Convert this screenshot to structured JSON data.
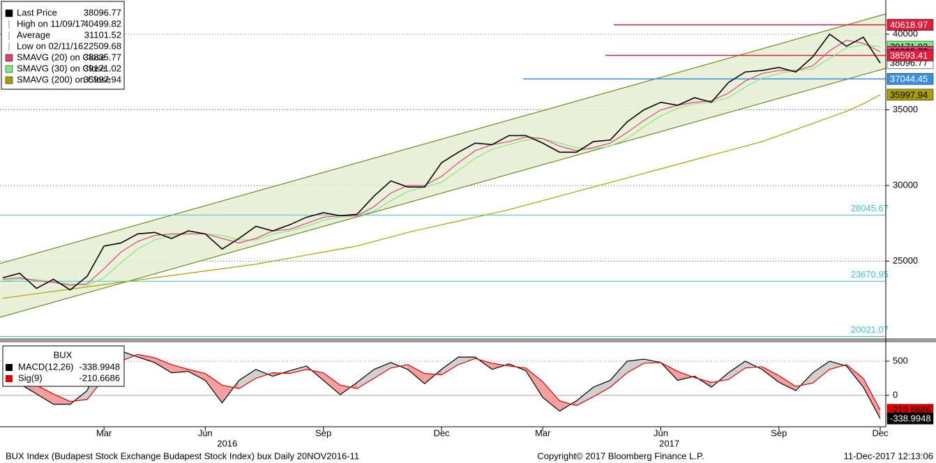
{
  "chart_data": [
    {
      "type": "line",
      "categories": [
        null,
        null,
        null,
        null,
        null,
        null,
        "Mar",
        null,
        null,
        null,
        null,
        null,
        "Jun",
        null,
        null,
        null,
        null,
        null,
        null,
        "Sep",
        null,
        null,
        null,
        null,
        null,
        null,
        "Dec",
        null,
        null,
        null,
        null,
        null,
        "Mar",
        null,
        null,
        null,
        null,
        null,
        null,
        "Jun",
        null,
        null,
        null,
        null,
        null,
        null,
        "Sep",
        null,
        null,
        null,
        null,
        null,
        "Dec"
      ],
      "years": [
        "2016",
        "2017"
      ],
      "ylim": [
        19770,
        42258
      ],
      "yticks": [
        25000,
        30000,
        35000,
        40000
      ],
      "grid": true,
      "series": [
        {
          "name": "Last Price",
          "color": "#000000",
          "values": [
            23900,
            24200,
            23200,
            23800,
            23100,
            24000,
            26000,
            26200,
            26800,
            26900,
            26500,
            27000,
            26800,
            25800,
            26500,
            27300,
            27000,
            27400,
            27900,
            28200,
            28000,
            28100,
            29300,
            30300,
            29900,
            29900,
            31500,
            32200,
            32800,
            32700,
            33300,
            33300,
            32800,
            32200,
            32200,
            32900,
            33000,
            34200,
            35000,
            35500,
            35300,
            35800,
            35500,
            36800,
            37500,
            37600,
            37800,
            37500,
            38500,
            40000,
            39200,
            39800,
            38096.77
          ]
        },
        {
          "name": "SMAVG (20) on Close",
          "color": "#e0407f",
          "values": [
            23800,
            23900,
            23700,
            23600,
            23400,
            23500,
            24500,
            25600,
            26300,
            26700,
            26800,
            26800,
            26800,
            26500,
            26200,
            26500,
            27000,
            27100,
            27500,
            27900,
            28000,
            28000,
            28600,
            29500,
            30000,
            30000,
            30600,
            31500,
            32300,
            32700,
            32900,
            33200,
            33100,
            32600,
            32300,
            32500,
            32800,
            33500,
            34300,
            35000,
            35300,
            35500,
            35600,
            36100,
            36900,
            37400,
            37600,
            37600,
            37900,
            38900,
            39600,
            39400,
            38835.77
          ]
        },
        {
          "name": "SMAVG (30) on Close",
          "color": "#80e880",
          "values": [
            23700,
            23800,
            23800,
            23600,
            23500,
            23400,
            23900,
            24900,
            25800,
            26400,
            26700,
            26800,
            26800,
            26700,
            26400,
            26400,
            26800,
            27000,
            27300,
            27700,
            27900,
            28000,
            28300,
            29000,
            29600,
            29900,
            30200,
            31000,
            31800,
            32400,
            32700,
            33000,
            33100,
            32800,
            32500,
            32400,
            32600,
            33100,
            33900,
            34600,
            35100,
            35400,
            35500,
            35800,
            36500,
            37100,
            37400,
            37600,
            37700,
            38400,
            39100,
            39300,
            39171.02
          ]
        },
        {
          "name": "SMAVG (200) on Close",
          "color": "#a8a000",
          "values": [
            22550,
            22700,
            22850,
            23000,
            23150,
            23300,
            23450,
            23600,
            23750,
            23900,
            24050,
            24200,
            24350,
            24500,
            24650,
            24800,
            25000,
            25200,
            25400,
            25600,
            25800,
            26000,
            26300,
            26600,
            26900,
            27150,
            27400,
            27650,
            27900,
            28150,
            28400,
            28700,
            29000,
            29300,
            29600,
            29900,
            30200,
            30500,
            30800,
            31100,
            31400,
            31700,
            32000,
            32300,
            32600,
            32900,
            33300,
            33700,
            34100,
            34500,
            34900,
            35400,
            35997.94
          ]
        }
      ],
      "stats": [
        {
          "label": "High on 11/09/17",
          "value": 40499.82
        },
        {
          "label": "Average",
          "value": 31101.52
        },
        {
          "label": "Low on 02/11/16",
          "value": 22509.68
        }
      ],
      "channel": {
        "color": "#6a8c22",
        "fill": "#e6eed0",
        "upper": [
          24840,
          41336
        ],
        "lower": [
          21290,
          37742
        ]
      },
      "hlines": [
        {
          "value": 40618.97,
          "color": "#e31b3c"
        },
        {
          "value": 38593.41,
          "color": "#e31b3c"
        },
        {
          "value": 37044.45,
          "color": "#3a8fe0"
        },
        {
          "value": 28045.67,
          "color": "#3cc4d6"
        },
        {
          "value": 23670.95,
          "color": "#3cc4d6"
        },
        {
          "value": 20021.07,
          "color": "#3cc4d6"
        }
      ]
    },
    {
      "type": "line",
      "title": "BUX",
      "ylim": [
        -459,
        755
      ],
      "yticks": [
        0,
        500
      ],
      "series": [
        {
          "name": "MACD(12,26)",
          "color": "#000000",
          "values": [
            280,
            170,
            20,
            -130,
            -130,
            70,
            630,
            650,
            560,
            480,
            330,
            350,
            220,
            -110,
            220,
            380,
            280,
            360,
            430,
            220,
            10,
            190,
            380,
            480,
            380,
            170,
            380,
            560,
            560,
            380,
            460,
            360,
            -30,
            -230,
            -80,
            120,
            220,
            500,
            530,
            480,
            220,
            280,
            120,
            330,
            500,
            380,
            190,
            70,
            330,
            500,
            430,
            120,
            -338.9948
          ]
        },
        {
          "name": "Sig(9)",
          "color": "#e00000",
          "values": [
            400,
            300,
            150,
            20,
            -90,
            -60,
            250,
            500,
            600,
            550,
            450,
            380,
            320,
            150,
            100,
            250,
            330,
            320,
            380,
            330,
            150,
            100,
            250,
            400,
            450,
            320,
            300,
            450,
            540,
            470,
            430,
            400,
            200,
            -80,
            -150,
            -20,
            120,
            330,
            470,
            480,
            350,
            260,
            190,
            230,
            400,
            420,
            290,
            130,
            180,
            380,
            450,
            250,
            -210.6686
          ]
        }
      ]
    }
  ],
  "footer": {
    "left": "BUX Index (Budapest Stock Exchange Budapest Stock Index) bux  Daily 20NOV2016-11",
    "center": "Copyright© 2017 Bloomberg Finance L.P.",
    "right": "11-Dec-2017 12:13:06"
  }
}
